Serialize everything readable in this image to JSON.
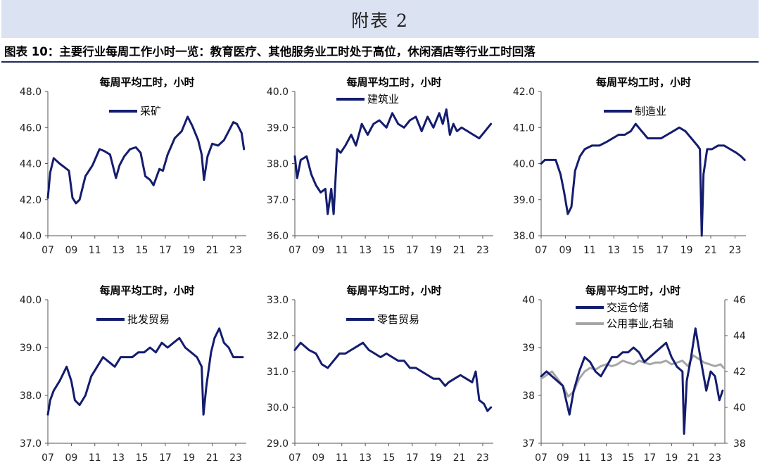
{
  "header": {
    "banner": "附表 2",
    "figure_title": "图表 10：主要行业每周工作小时一览：教育医疗、其他服务业工时处于高位，休闲酒店等行业工时回落"
  },
  "colors": {
    "primary": "#141c6e",
    "secondary": "#a6a6a6"
  },
  "chart_data": [
    {
      "type": "line",
      "title": "每周平均工时，小时",
      "ylim": [
        40,
        48
      ],
      "yticks": [
        "40.0",
        "42.0",
        "44.0",
        "46.0",
        "48.0"
      ],
      "xlim": [
        2007,
        2023.9
      ],
      "xticks": [
        "07",
        "09",
        "11",
        "13",
        "15",
        "17",
        "19",
        "21",
        "23"
      ],
      "series": [
        {
          "name": "采矿",
          "axis": "left",
          "x": [
            2007,
            2007.2,
            2007.5,
            2008,
            2008.4,
            2008.8,
            2009.1,
            2009.4,
            2009.7,
            2010.2,
            2010.8,
            2011.4,
            2011.8,
            2012.3,
            2012.8,
            2013.1,
            2013.5,
            2014,
            2014.5,
            2014.9,
            2015.3,
            2015.7,
            2016,
            2016.5,
            2016.8,
            2017.2,
            2017.8,
            2018.4,
            2018.9,
            2019.3,
            2019.8,
            2020.1,
            2020.3,
            2020.6,
            2021,
            2021.5,
            2022,
            2022.4,
            2022.8,
            2023.1,
            2023.5,
            2023.7
          ],
          "values": [
            42.1,
            43.5,
            44.3,
            44,
            43.8,
            43.6,
            42.1,
            41.8,
            42,
            43.3,
            43.9,
            44.8,
            44.7,
            44.5,
            43.2,
            43.9,
            44.4,
            44.8,
            44.9,
            44.6,
            43.3,
            43.1,
            42.8,
            43.7,
            43.6,
            44.5,
            45.4,
            45.8,
            46.6,
            46.1,
            45.3,
            44.5,
            43.1,
            44.4,
            45.1,
            45,
            45.3,
            45.8,
            46.3,
            46.2,
            45.7,
            44.8
          ]
        }
      ]
    },
    {
      "type": "line",
      "title": "每周平均工时，小时",
      "ylim": [
        36,
        40
      ],
      "yticks": [
        "36.0",
        "37.0",
        "38.0",
        "39.0",
        "40.0"
      ],
      "xlim": [
        2007,
        2023.9
      ],
      "xticks": [
        "07",
        "09",
        "11",
        "13",
        "15",
        "17",
        "19",
        "21",
        "23"
      ],
      "series": [
        {
          "name": "建筑业",
          "axis": "left",
          "x": [
            2007,
            2007.2,
            2007.5,
            2008,
            2008.4,
            2008.8,
            2009.2,
            2009.6,
            2009.8,
            2010.1,
            2010.3,
            2010.6,
            2010.9,
            2011.3,
            2011.8,
            2012.2,
            2012.7,
            2013.2,
            2013.7,
            2014.2,
            2014.8,
            2015.3,
            2015.8,
            2016.3,
            2016.8,
            2017.3,
            2017.8,
            2018.3,
            2018.8,
            2019.3,
            2019.6,
            2019.9,
            2020.2,
            2020.5,
            2020.8,
            2021.2,
            2021.7,
            2022.2,
            2022.7,
            2023.2,
            2023.7
          ],
          "values": [
            38.2,
            37.6,
            38.1,
            38.2,
            37.7,
            37.4,
            37.2,
            37.3,
            36.6,
            37.3,
            36.6,
            38.4,
            38.3,
            38.5,
            38.8,
            38.5,
            39.1,
            38.8,
            39.1,
            39.2,
            39,
            39.4,
            39.1,
            39,
            39.2,
            39.3,
            38.9,
            39.3,
            39,
            39.4,
            39.1,
            39.5,
            38.8,
            39.1,
            38.9,
            39,
            38.9,
            38.8,
            38.7,
            38.9,
            39.1
          ]
        }
      ]
    },
    {
      "type": "line",
      "title": "每周平均工时，小时",
      "ylim": [
        38,
        42
      ],
      "yticks": [
        "38.0",
        "39.0",
        "40.0",
        "41.0",
        "42.0"
      ],
      "xlim": [
        2007,
        2023.9
      ],
      "xticks": [
        "07",
        "09",
        "11",
        "13",
        "15",
        "17",
        "19",
        "21",
        "23"
      ],
      "series": [
        {
          "name": "制造业",
          "axis": "left",
          "x": [
            2007,
            2007.3,
            2007.7,
            2008.2,
            2008.6,
            2008.9,
            2009.2,
            2009.5,
            2009.8,
            2010.2,
            2010.6,
            2011.2,
            2011.8,
            2012.4,
            2012.9,
            2013.4,
            2013.9,
            2014.4,
            2014.8,
            2015.3,
            2015.8,
            2016.4,
            2016.9,
            2017.4,
            2017.9,
            2018.4,
            2018.9,
            2019.4,
            2019.9,
            2020.1,
            2020.25,
            2020.4,
            2020.7,
            2021.1,
            2021.6,
            2022.1,
            2022.6,
            2023.1,
            2023.5,
            2023.8
          ],
          "values": [
            40,
            40.1,
            40.1,
            40.1,
            39.7,
            39.2,
            38.6,
            38.8,
            39.8,
            40.2,
            40.4,
            40.5,
            40.5,
            40.6,
            40.7,
            40.8,
            40.8,
            40.9,
            41.1,
            40.9,
            40.7,
            40.7,
            40.7,
            40.8,
            40.9,
            41,
            40.9,
            40.7,
            40.5,
            40.4,
            38,
            39.7,
            40.4,
            40.4,
            40.5,
            40.5,
            40.4,
            40.3,
            40.2,
            40.1
          ]
        }
      ]
    },
    {
      "type": "line",
      "title": "每周平均工时，小时",
      "ylim": [
        37,
        40
      ],
      "yticks": [
        "37.0",
        "38.0",
        "39.0",
        "40.0"
      ],
      "xlim": [
        2007,
        2023.9
      ],
      "xticks": [
        "07",
        "09",
        "11",
        "13",
        "15",
        "17",
        "19",
        "21",
        "23"
      ],
      "series": [
        {
          "name": "批发贸易",
          "axis": "left",
          "x": [
            2007,
            2007.2,
            2007.5,
            2008,
            2008.6,
            2009,
            2009.3,
            2009.7,
            2010.2,
            2010.7,
            2011.2,
            2011.7,
            2012.2,
            2012.7,
            2013.2,
            2013.7,
            2014.2,
            2014.7,
            2015.2,
            2015.7,
            2016.2,
            2016.7,
            2017.2,
            2017.7,
            2018.2,
            2018.7,
            2019.2,
            2019.7,
            2020.1,
            2020.25,
            2020.5,
            2020.9,
            2021.2,
            2021.6,
            2022,
            2022.4,
            2022.8,
            2023.2,
            2023.6
          ],
          "values": [
            37.6,
            37.9,
            38.1,
            38.3,
            38.6,
            38.3,
            37.9,
            37.8,
            38,
            38.4,
            38.6,
            38.8,
            38.7,
            38.6,
            38.8,
            38.8,
            38.8,
            38.9,
            38.9,
            39,
            38.9,
            39.1,
            39,
            39.1,
            39.2,
            39,
            38.9,
            38.8,
            38.6,
            37.6,
            38.2,
            38.9,
            39.2,
            39.4,
            39.1,
            39,
            38.8,
            38.8,
            38.8
          ]
        }
      ]
    },
    {
      "type": "line",
      "title": "每周平均工时，小时",
      "ylim": [
        29,
        33
      ],
      "yticks": [
        "29.0",
        "30.0",
        "31.0",
        "32.0",
        "33.0"
      ],
      "xlim": [
        2007,
        2023.9
      ],
      "xticks": [
        "07",
        "09",
        "11",
        "13",
        "15",
        "17",
        "19",
        "21",
        "23"
      ],
      "series": [
        {
          "name": "零售贸易",
          "axis": "left",
          "x": [
            2007,
            2007.5,
            2008.2,
            2008.8,
            2009.3,
            2009.8,
            2010.3,
            2010.8,
            2011.3,
            2011.8,
            2012.3,
            2012.8,
            2013.3,
            2013.8,
            2014.3,
            2014.8,
            2015.3,
            2015.8,
            2016.3,
            2016.8,
            2017.3,
            2017.8,
            2018.3,
            2018.8,
            2019.3,
            2019.8,
            2020.1,
            2020.6,
            2021.1,
            2021.6,
            2022.1,
            2022.4,
            2022.7,
            2023.1,
            2023.4,
            2023.7
          ],
          "values": [
            31.6,
            31.8,
            31.6,
            31.5,
            31.2,
            31.1,
            31.3,
            31.5,
            31.5,
            31.6,
            31.7,
            31.8,
            31.6,
            31.5,
            31.4,
            31.5,
            31.4,
            31.3,
            31.3,
            31.1,
            31.1,
            31,
            30.9,
            30.8,
            30.8,
            30.6,
            30.7,
            30.8,
            30.9,
            30.8,
            30.7,
            31,
            30.2,
            30.1,
            29.9,
            30
          ]
        }
      ]
    },
    {
      "type": "line",
      "title": "每周平均工时，小时",
      "ylim": [
        37,
        40
      ],
      "yticks": [
        "37",
        "38",
        "39",
        "40"
      ],
      "y2lim": [
        38,
        46
      ],
      "y2ticks": [
        "38",
        "40",
        "42",
        "44",
        "46"
      ],
      "xlim": [
        2007,
        2023.9
      ],
      "xticks": [
        "07",
        "09",
        "11",
        "13",
        "15",
        "17",
        "19",
        "21",
        "23"
      ],
      "series": [
        {
          "name": "交运仓储",
          "axis": "left",
          "x": [
            2007,
            2007.5,
            2008,
            2008.5,
            2009,
            2009.3,
            2009.6,
            2010,
            2010.5,
            2011,
            2011.5,
            2012,
            2012.5,
            2013,
            2013.5,
            2014,
            2014.5,
            2015,
            2015.5,
            2016,
            2016.5,
            2017,
            2017.5,
            2018,
            2018.5,
            2019,
            2019.5,
            2020,
            2020.15,
            2020.4,
            2020.8,
            2021.2,
            2021.5,
            2021.8,
            2022.2,
            2022.6,
            2023,
            2023.4,
            2023.7
          ],
          "values": [
            38.4,
            38.5,
            38.4,
            38.3,
            38.2,
            37.9,
            37.6,
            38.1,
            38.5,
            38.8,
            38.7,
            38.5,
            38.4,
            38.6,
            38.8,
            38.8,
            38.9,
            38.9,
            39,
            38.9,
            38.7,
            38.8,
            38.9,
            39,
            39.1,
            38.8,
            38.6,
            38.5,
            37.2,
            38.3,
            38.8,
            39.4,
            39,
            38.6,
            38.1,
            38.5,
            38.4,
            37.9,
            38.1
          ]
        },
        {
          "name": "公用事业,右轴",
          "axis": "right",
          "x": [
            2007,
            2007.5,
            2008,
            2008.5,
            2009,
            2009.5,
            2010,
            2010.5,
            2011,
            2011.5,
            2012,
            2012.5,
            2013,
            2013.5,
            2014,
            2014.5,
            2015,
            2015.5,
            2016,
            2016.5,
            2017,
            2017.5,
            2018,
            2018.5,
            2019,
            2019.5,
            2020,
            2020.5,
            2021,
            2021.5,
            2022,
            2022.5,
            2023,
            2023.5,
            2023.8
          ],
          "values": [
            41.6,
            41.8,
            42,
            41.6,
            41.2,
            40.6,
            40.9,
            41.6,
            42,
            42.2,
            42.1,
            42.3,
            42.4,
            42.3,
            42.4,
            42.6,
            42.5,
            42.4,
            42.6,
            42.5,
            42.4,
            42.5,
            42.5,
            42.6,
            42.4,
            42.5,
            42.6,
            42.3,
            42.9,
            42.7,
            42.5,
            42.4,
            42.3,
            42.4,
            42.2
          ]
        }
      ]
    }
  ]
}
